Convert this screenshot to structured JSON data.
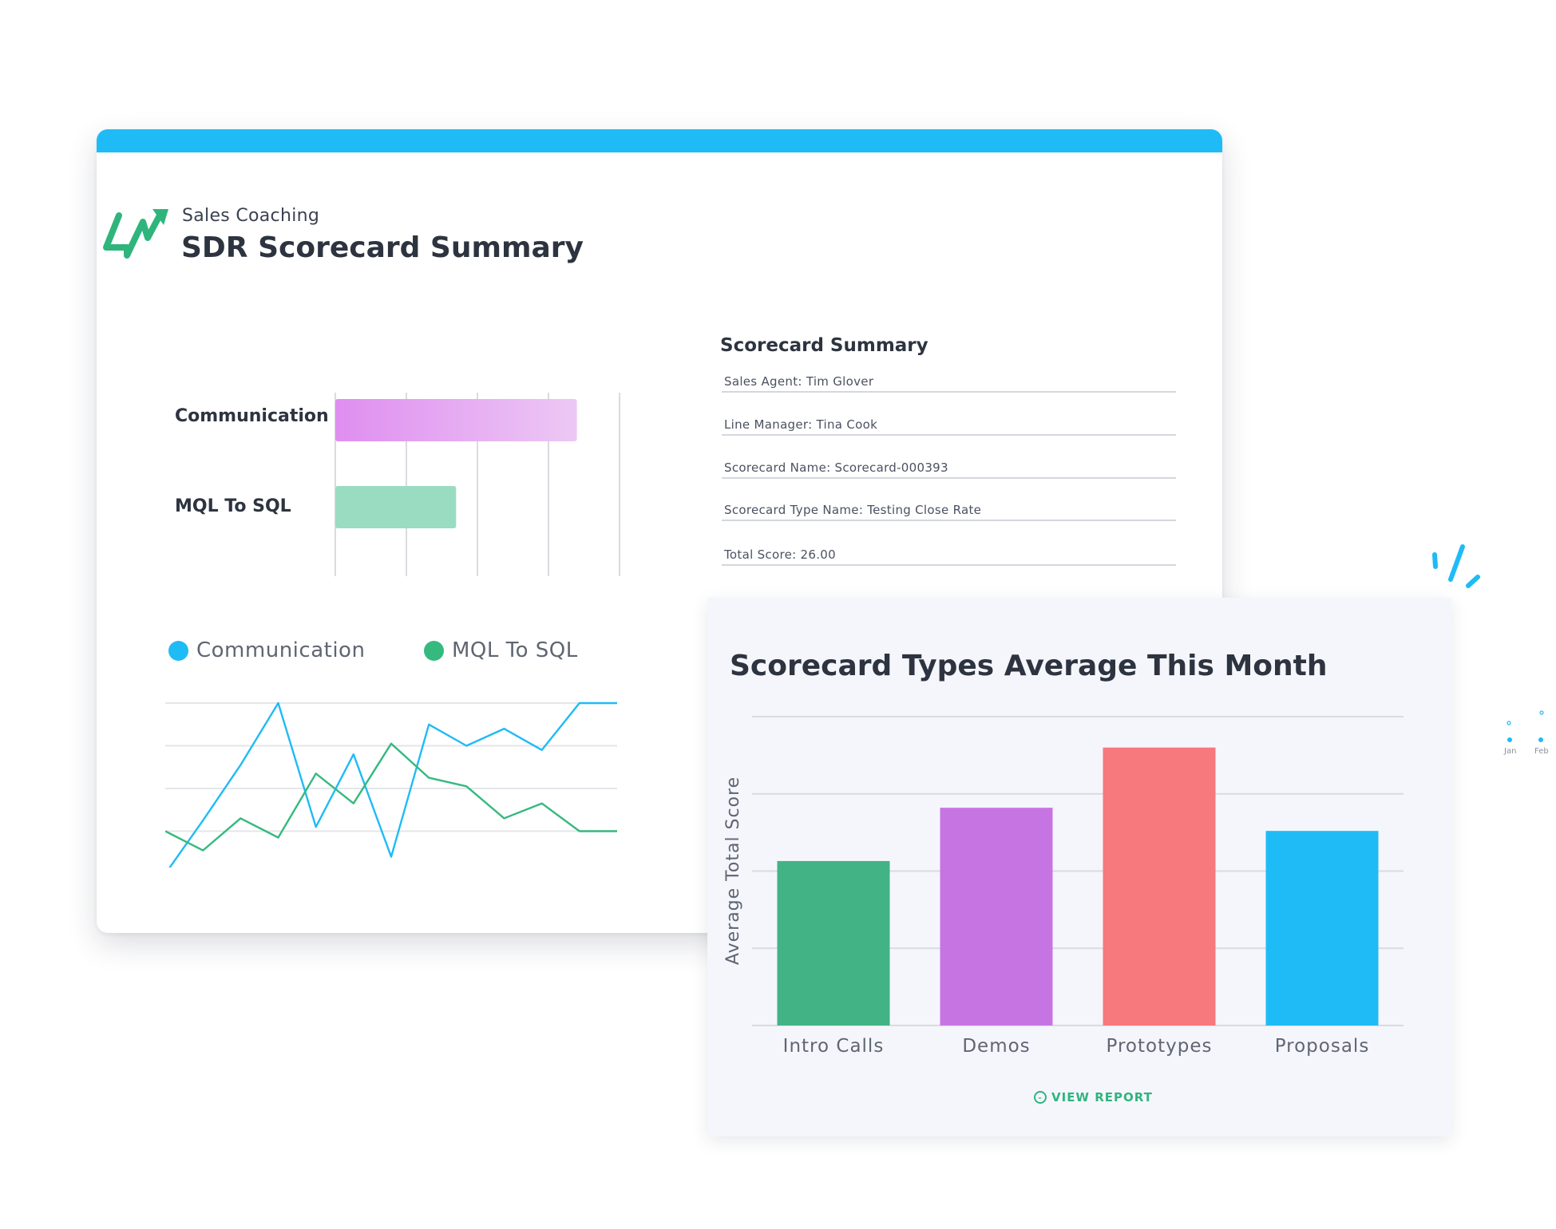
{
  "header": {
    "subtitle": "Sales Coaching",
    "title": "SDR Scorecard Summary"
  },
  "colors": {
    "brand_blue": "#1fbbf6",
    "brand_green": "#2fb57c",
    "communication_bar": "#df8ef0",
    "mql_bar": "#99dcc2",
    "line_blue": "#1fbbf6",
    "line_green": "#35b97f",
    "bar_green": "#42b385",
    "bar_purple": "#c774e3",
    "bar_red": "#f7797e",
    "bar_blue": "#1fbbf6"
  },
  "skills_chart": {
    "type": "bar",
    "orientation": "horizontal",
    "categories": [
      "Communication",
      "MQL To SQL"
    ],
    "values": [
      3.4,
      1.7
    ],
    "xlim": [
      0,
      4
    ],
    "grid": true
  },
  "summary": {
    "title": "Scorecard Summary",
    "rows": [
      "Sales Agent: Tim Glover",
      "Line Manager: Tina Cook",
      "Scorecard Name: Scorecard-000393",
      "Scorecard Type Name: Testing Close Rate",
      "Total Score: 26.00"
    ]
  },
  "trend_chart": {
    "type": "line",
    "legend": [
      "Communication",
      "MQL To SQL"
    ],
    "ylim": [
      0,
      4
    ],
    "grid": true,
    "series": [
      {
        "name": "Communication",
        "x": [
          0,
          1,
          2,
          3,
          4,
          5,
          6,
          7,
          8,
          9,
          10,
          11,
          12
        ],
        "values": [
          0,
          1.25,
          2.55,
          4,
          1.1,
          2.8,
          0.4,
          3.5,
          3.0,
          3.4,
          2.9,
          4,
          4
        ]
      },
      {
        "name": "MQL To SQL",
        "x": [
          0,
          1,
          2,
          3,
          4,
          5,
          6,
          7,
          8,
          9,
          10,
          11,
          12
        ],
        "values": [
          1,
          0.55,
          1.3,
          0.85,
          2.35,
          1.65,
          3.05,
          2.25,
          2.05,
          1.3,
          1.65,
          1.0,
          1.0
        ]
      }
    ]
  },
  "chart_data": {
    "type": "bar",
    "title": "Scorecard Types Average This Month",
    "xlabel": "",
    "ylabel": "Average Total Score",
    "categories": [
      "Intro Calls",
      "Demos",
      "Prototypes",
      "Proposals"
    ],
    "values": [
      2.13,
      2.82,
      3.6,
      2.52
    ],
    "ylim": [
      0,
      4
    ],
    "grid": true
  },
  "footer": {
    "view_report": "VIEW REPORT"
  },
  "mini_chart": {
    "labels": [
      "Jan",
      "Feb"
    ]
  }
}
